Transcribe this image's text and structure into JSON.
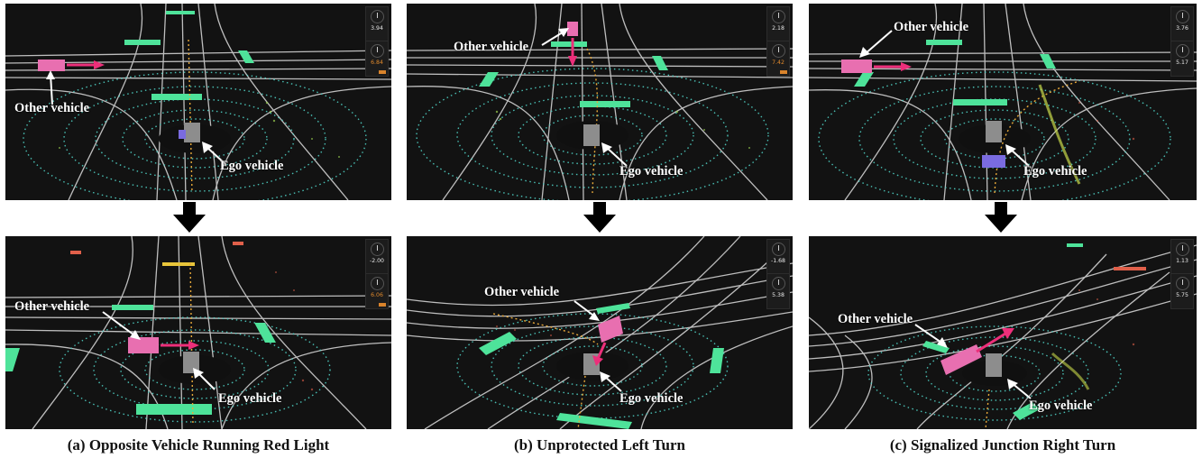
{
  "scenarios": [
    {
      "caption": "(a) Opposite Vehicle Running Red Light",
      "before": {
        "other_label": "Other vehicle",
        "ego_label": "Ego vehicle",
        "gauge_top": "3.94",
        "gauge_bottom": "6.84"
      },
      "after": {
        "other_label": "Other vehicle",
        "ego_label": "Ego vehicle",
        "gauge_top": "-2.00",
        "gauge_bottom": "6.06"
      }
    },
    {
      "caption": "(b) Unprotected Left Turn",
      "before": {
        "other_label": "Other vehicle",
        "ego_label": "Ego vehicle",
        "gauge_top": "2.18",
        "gauge_bottom": "7.42"
      },
      "after": {
        "other_label": "Other vehicle",
        "ego_label": "Ego vehicle",
        "gauge_top": "-1.68",
        "gauge_bottom": "5.38"
      }
    },
    {
      "caption": "(c) Signalized Junction Right Turn",
      "before": {
        "other_label": "Other vehicle",
        "ego_label": "Ego vehicle",
        "gauge_top": "3.76",
        "gauge_bottom": "5.17"
      },
      "after": {
        "other_label": "Other vehicle",
        "ego_label": "Ego vehicle",
        "gauge_top": "1.13",
        "gauge_bottom": "5.75"
      }
    }
  ],
  "colors": {
    "background": "#121212",
    "road_lines": "#dcdcdc",
    "lidar_rings": "#4fd1c5",
    "crosswalk": "#4ee39a",
    "other_vehicle": "#e86fb0",
    "motion_arrow": "#ec2f7a",
    "ego_vehicle": "#8d8d8d",
    "trajectory": "#e8a93a",
    "red_light": "#e0604a",
    "yellow_light": "#e8c53a"
  }
}
